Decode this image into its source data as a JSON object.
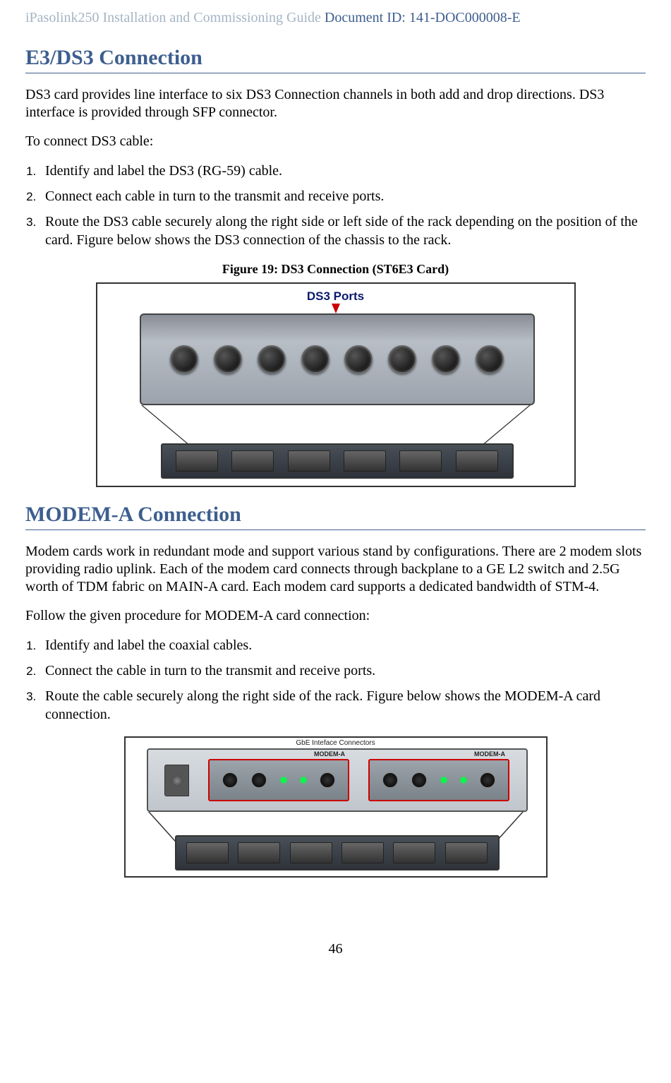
{
  "header": {
    "guideTitle": "iPasolink250 Installation and Commissioning Guide ",
    "docId": "Document ID: 141-DOC000008-E"
  },
  "section1": {
    "title": "E3/DS3 Connection",
    "intro": "DS3 card provides line interface to six DS3 Connection channels in both add and drop directions. DS3 interface is provided through SFP connector.",
    "procIntro": "To connect DS3 cable:",
    "steps": [
      "Identify and label the DS3 (RG-59) cable.",
      "Connect each cable in turn to the transmit and receive ports.",
      "Route the DS3 cable securely along the right side or left side of the rack depending on the position of the card. Figure below shows the DS3 connection of the chassis to the rack."
    ],
    "figCaption": "Figure 19: DS3 Connection (ST6E3 Card)",
    "figLabel": "DS3 Ports"
  },
  "section2": {
    "title": "MODEM-A Connection",
    "intro": "Modem cards work in redundant mode and support various stand by configurations. There are 2 modem slots providing radio uplink. Each of the modem card  connects through backplane to a GE L2 switch and 2.5G worth of TDM fabric on MAIN-A card. Each modem card supports a dedicated bandwidth of STM-4.",
    "procIntro": "Follow the given procedure for MODEM-A card connection:",
    "steps": [
      "Identify and label the coaxial cables.",
      "Connect the cable in turn to the transmit and receive ports.",
      "Route the cable securely along the right side of the rack. Figure below shows the MODEM-A card connection."
    ],
    "figLabel": "GbE Inteface Connectors",
    "modemLabel": "MODEM-A"
  },
  "pageNumber": "46",
  "style": {
    "headingColor": "#3d5e8f",
    "headerMutedColor": "#a5b4c4",
    "textColor": "#000000",
    "bodyFontSize": 20,
    "headingFontSize": 30,
    "captionFontSize": 18,
    "redAccent": "#cc0000",
    "panelBg": "#b8bec6",
    "chassisBg": "#2e333a"
  }
}
